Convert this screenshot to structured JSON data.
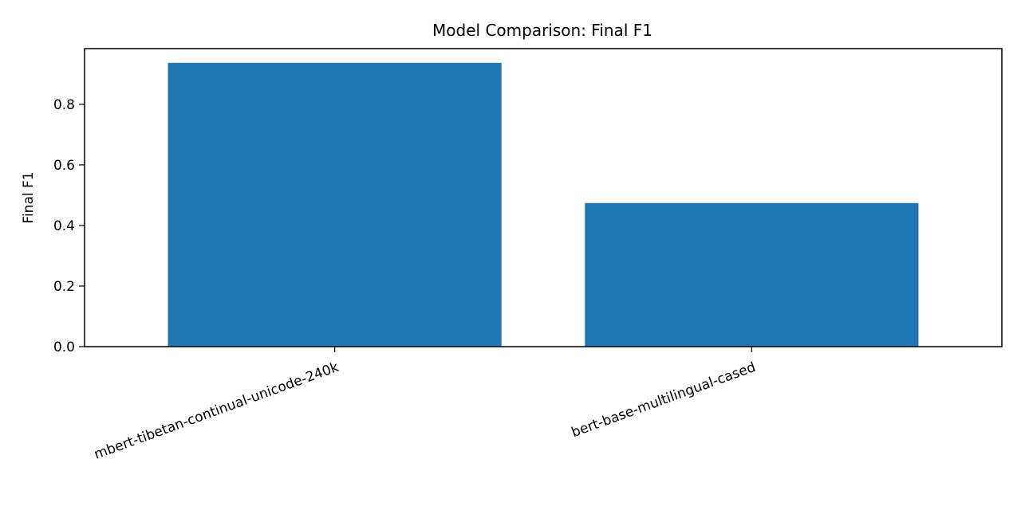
{
  "chart_data": {
    "type": "bar",
    "title": "Model Comparison: Final F1",
    "xlabel": "",
    "ylabel": "Final F1",
    "categories": [
      "mbert-tibetan-continual-unicode-240k",
      "bert-base-multilingual-cased"
    ],
    "values": [
      0.937,
      0.474
    ],
    "ylim": [
      0,
      0.984
    ],
    "yticks": [
      "0.0",
      "0.2",
      "0.4",
      "0.6",
      "0.8"
    ],
    "ytick_values": [
      0.0,
      0.2,
      0.4,
      0.6,
      0.8
    ],
    "grid": false,
    "bar_color": "#1f77b4"
  }
}
